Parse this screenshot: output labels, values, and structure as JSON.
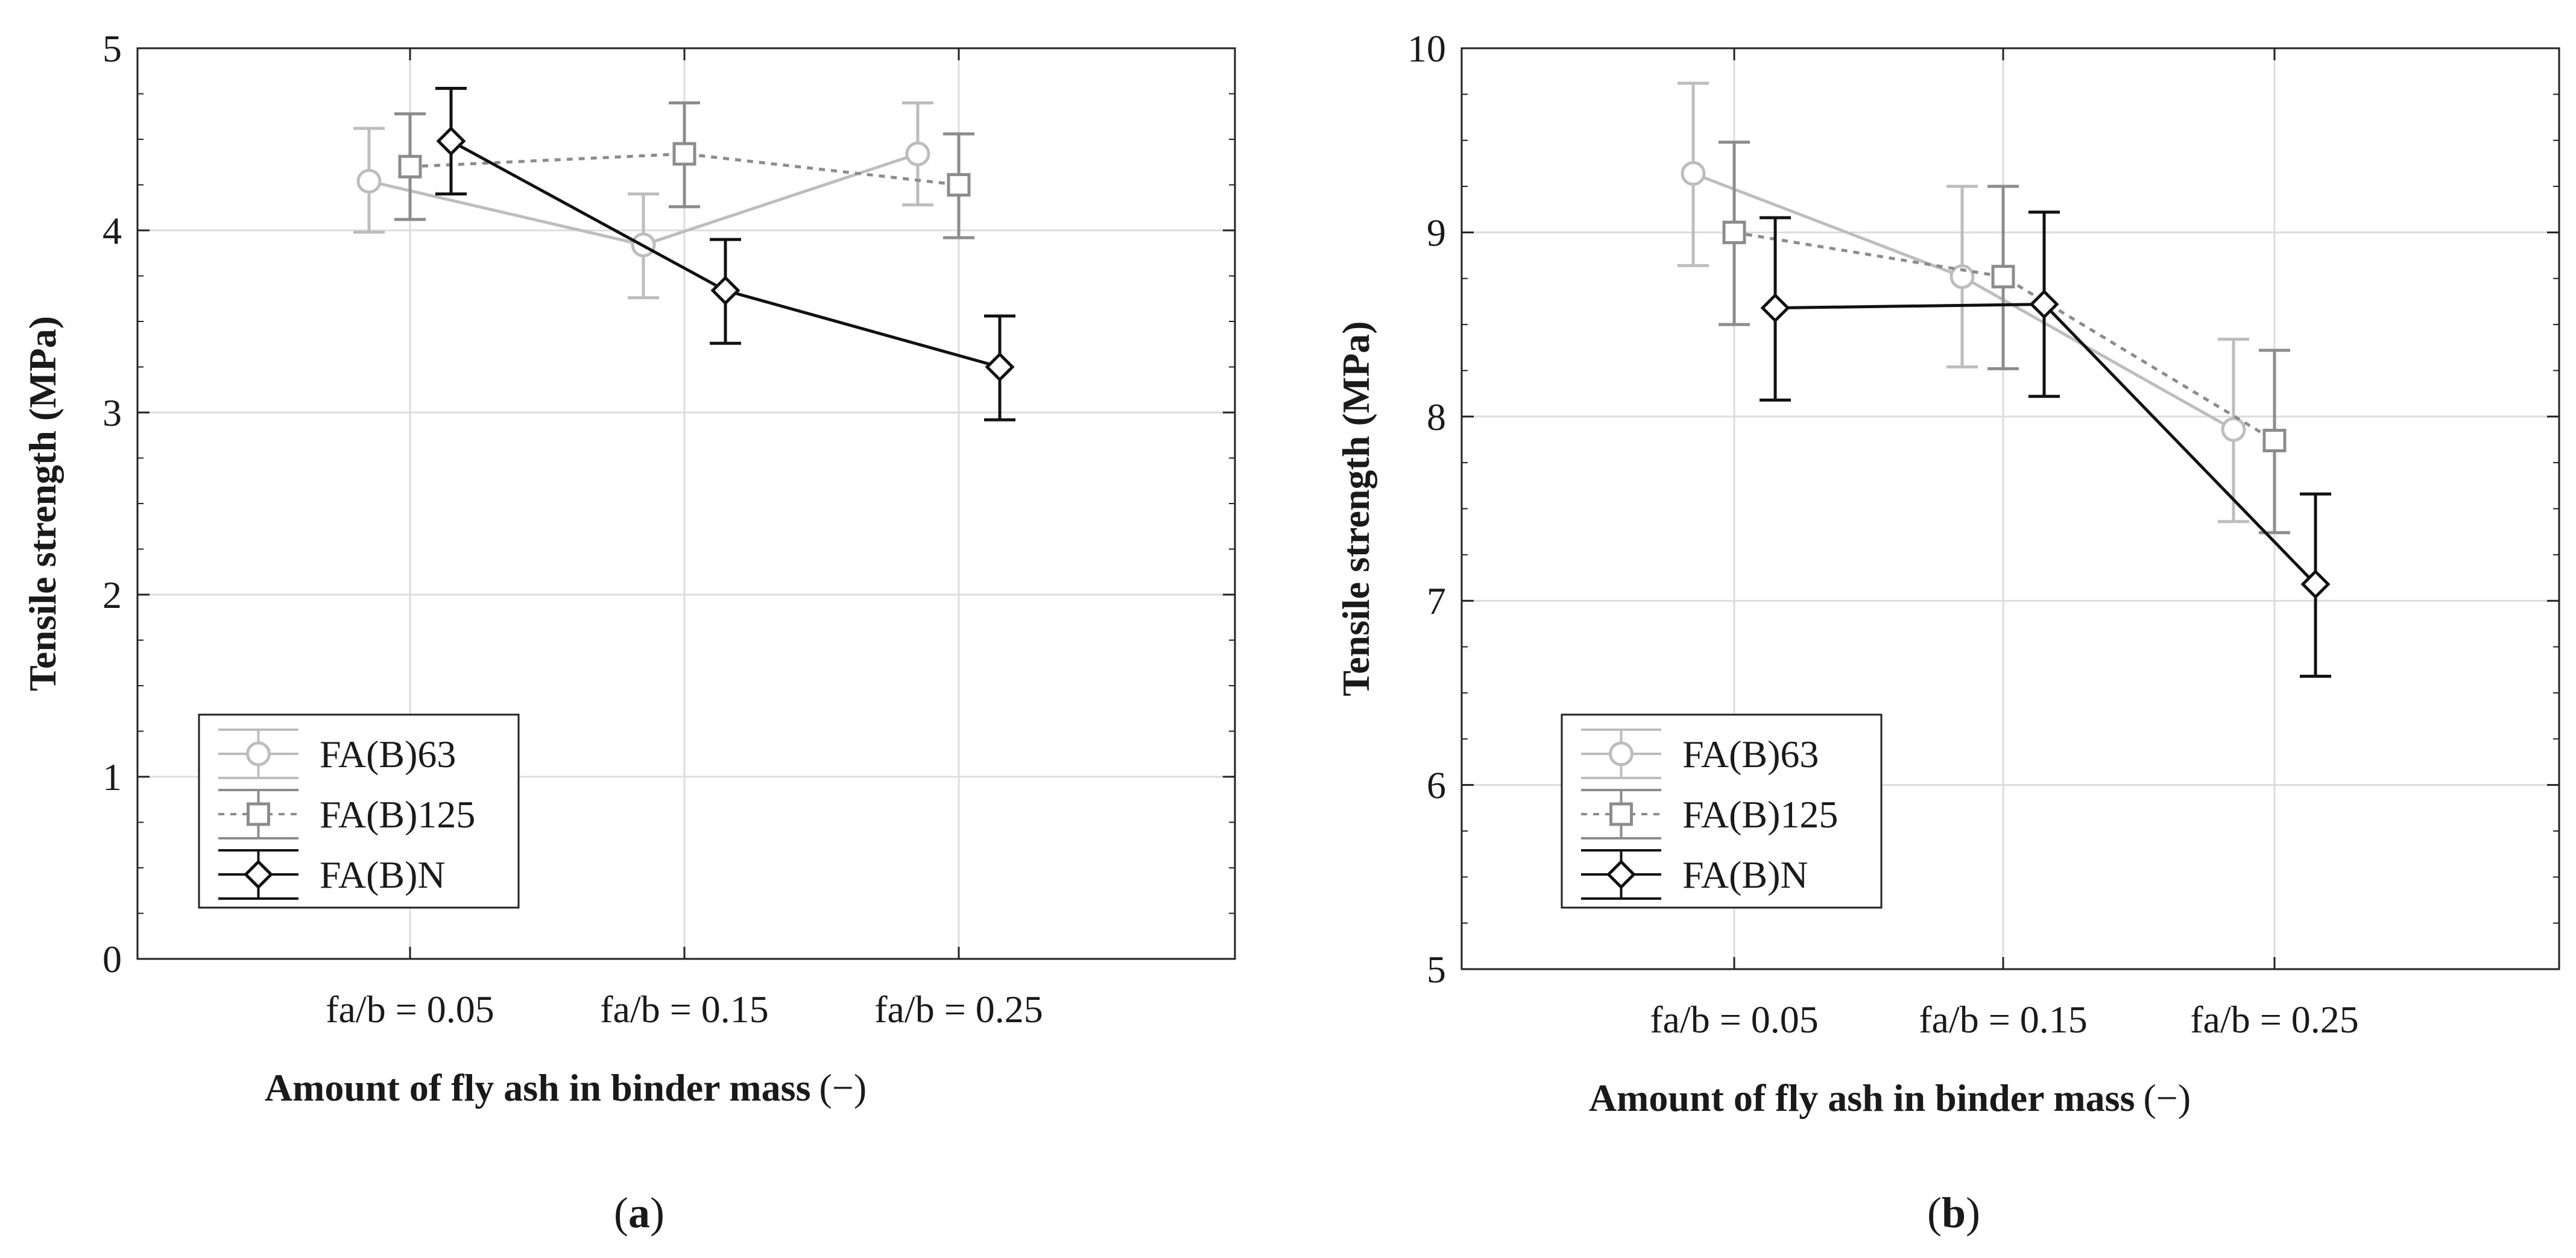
{
  "chart_data": [
    {
      "type": "line",
      "panel": "a",
      "caption_letter": "a",
      "xlabel": "Amount of fly ash in binder mass",
      "xlabel_unit": "(−)",
      "ylabel": "Tensile strength (MPa)",
      "ylim": [
        0,
        5
      ],
      "yticks": [
        "0",
        "1",
        "2",
        "3",
        "4",
        "5"
      ],
      "categories": [
        "fa/b = 0.05",
        "fa/b = 0.15",
        "fa/b = 0.25"
      ],
      "grid": true,
      "legend_position": "bottom-left",
      "series": [
        {
          "name": "FA(B)63",
          "color": "#bdbdbd",
          "dash": "solid",
          "marker": "circle",
          "values": [
            4.27,
            3.92,
            4.42
          ],
          "err_low": [
            3.99,
            3.63,
            4.14
          ],
          "err_high": [
            4.56,
            4.2,
            4.7
          ]
        },
        {
          "name": "FA(B)125",
          "color": "#8c8c8c",
          "dash": "dotted",
          "marker": "square",
          "values": [
            4.35,
            4.42,
            4.25
          ],
          "err_low": [
            4.06,
            4.13,
            3.96
          ],
          "err_high": [
            4.64,
            4.7,
            4.53
          ]
        },
        {
          "name": "FA(B)N",
          "color": "#111111",
          "dash": "solid",
          "marker": "diamond",
          "values": [
            4.49,
            3.67,
            3.25
          ],
          "err_low": [
            4.2,
            3.38,
            2.96
          ],
          "err_high": [
            4.78,
            3.95,
            3.53
          ]
        }
      ]
    },
    {
      "type": "line",
      "panel": "b",
      "caption_letter": "b",
      "xlabel": "Amount of fly ash in binder mass",
      "xlabel_unit": "(−)",
      "ylabel": "Tensile strength (MPa)",
      "ylim": [
        5,
        10
      ],
      "yticks": [
        "5",
        "6",
        "7",
        "8",
        "9",
        "10"
      ],
      "categories": [
        "fa/b = 0.05",
        "fa/b = 0.15",
        "fa/b = 0.25"
      ],
      "grid": true,
      "legend_position": "bottom-left",
      "series": [
        {
          "name": "FA(B)63",
          "color": "#bdbdbd",
          "dash": "solid",
          "marker": "circle",
          "values": [
            9.32,
            8.76,
            7.93
          ],
          "err_low": [
            8.82,
            8.27,
            7.43
          ],
          "err_high": [
            9.81,
            9.25,
            8.42
          ]
        },
        {
          "name": "FA(B)125",
          "color": "#8c8c8c",
          "dash": "dotted",
          "marker": "square",
          "values": [
            9.0,
            8.76,
            7.87
          ],
          "err_low": [
            8.5,
            8.26,
            7.37
          ],
          "err_high": [
            9.49,
            9.25,
            8.36
          ]
        },
        {
          "name": "FA(B)N",
          "color": "#111111",
          "dash": "solid",
          "marker": "diamond",
          "values": [
            8.59,
            8.61,
            7.09
          ],
          "err_low": [
            8.09,
            8.11,
            6.59
          ],
          "err_high": [
            9.08,
            9.11,
            7.58
          ]
        }
      ]
    }
  ]
}
